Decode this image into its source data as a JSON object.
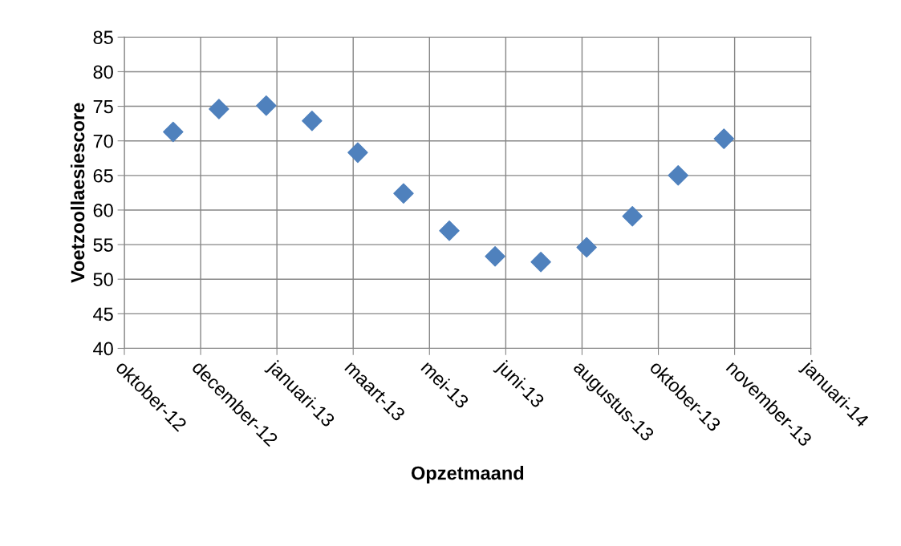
{
  "chart_data": {
    "type": "scatter",
    "xlabel": "Opzetmaand",
    "ylabel": "Voetzoollaesiescore",
    "x": [
      "2012-11-21",
      "2012-12-21",
      "2013-01-21",
      "2013-02-20",
      "2013-03-22",
      "2013-04-21",
      "2013-05-21",
      "2013-06-20",
      "2013-07-20",
      "2013-08-19",
      "2013-09-18",
      "2013-10-18",
      "2013-11-17"
    ],
    "series": [
      {
        "color": "#4f81bd",
        "values": [
          71.3,
          74.6,
          75.1,
          72.9,
          68.3,
          62.4,
          57.0,
          53.3,
          52.5,
          54.6,
          59.1,
          65.0,
          70.3
        ]
      }
    ],
    "marker": "diamond",
    "xlim": [
      "2012-10-20",
      "2014-01-13"
    ],
    "xticks": [
      {
        "value": "2012-10-20",
        "label": "oktober-12"
      },
      {
        "value": "2012-12-09",
        "label": "december-12"
      },
      {
        "value": "2013-01-28",
        "label": "januari-13"
      },
      {
        "value": "2013-03-19",
        "label": "maart-13"
      },
      {
        "value": "2013-05-08",
        "label": "mei-13"
      },
      {
        "value": "2013-06-27",
        "label": "juni-13"
      },
      {
        "value": "2013-08-16",
        "label": "augustus-13"
      },
      {
        "value": "2013-10-05",
        "label": "oktober-13"
      },
      {
        "value": "2013-11-24",
        "label": "november-13"
      },
      {
        "value": "2014-01-13",
        "label": "januari-14"
      }
    ],
    "ylim": [
      40,
      85
    ],
    "yticks": [
      40,
      45,
      50,
      55,
      60,
      65,
      70,
      75,
      80,
      85
    ],
    "grid": true
  }
}
